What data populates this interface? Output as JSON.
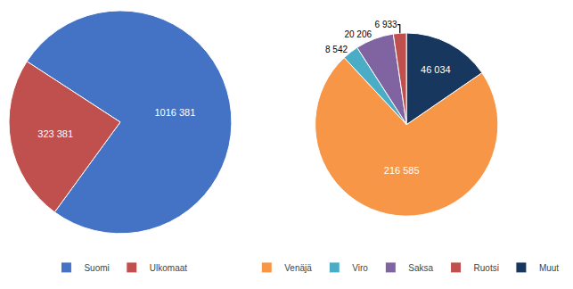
{
  "chart_data": [
    {
      "type": "pie",
      "categories": [
        "Suomi",
        "Ulkomaat"
      ],
      "values": [
        1016381,
        323381
      ],
      "value_labels": [
        "1016 381",
        "323 381"
      ],
      "colors": [
        "#4472C4",
        "#C0504D"
      ],
      "data_labels": true,
      "legend": "bottom"
    },
    {
      "type": "pie",
      "categories": [
        "Venäjä",
        "Viro",
        "Saksa",
        "Ruotsi",
        "Muut"
      ],
      "values": [
        216585,
        8542,
        20206,
        6933,
        46034
      ],
      "value_labels": [
        "216 585",
        "8 542",
        "20 206",
        "6 933",
        "46 034"
      ],
      "colors": [
        "#F79646",
        "#4BACC6",
        "#8064A2",
        "#C0504D",
        "#17375E"
      ],
      "data_labels": true,
      "legend": "bottom"
    }
  ]
}
